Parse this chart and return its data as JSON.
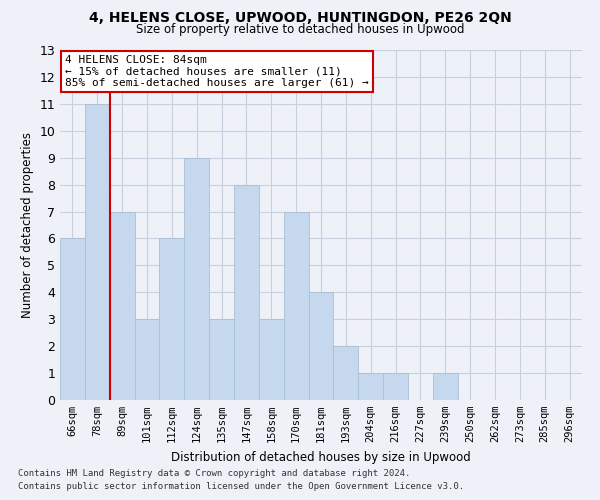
{
  "title1": "4, HELENS CLOSE, UPWOOD, HUNTINGDON, PE26 2QN",
  "title2": "Size of property relative to detached houses in Upwood",
  "xlabel": "Distribution of detached houses by size in Upwood",
  "ylabel": "Number of detached properties",
  "categories": [
    "66sqm",
    "78sqm",
    "89sqm",
    "101sqm",
    "112sqm",
    "124sqm",
    "135sqm",
    "147sqm",
    "158sqm",
    "170sqm",
    "181sqm",
    "193sqm",
    "204sqm",
    "216sqm",
    "227sqm",
    "239sqm",
    "250sqm",
    "262sqm",
    "273sqm",
    "285sqm",
    "296sqm"
  ],
  "values": [
    6,
    11,
    7,
    3,
    6,
    9,
    3,
    8,
    3,
    7,
    4,
    2,
    1,
    1,
    0,
    1,
    0,
    0,
    0,
    0,
    0
  ],
  "bar_color": "#c5d8ed",
  "bar_edge_color": "#a8bfd4",
  "grid_color": "#c8d0df",
  "background_color": "#eef2f8",
  "vline_x_idx": 1.5,
  "vline_color": "#cc0000",
  "annotation_text": "4 HELENS CLOSE: 84sqm\n← 15% of detached houses are smaller (11)\n85% of semi-detached houses are larger (61) →",
  "annotation_box_facecolor": "#ffffff",
  "annotation_box_edgecolor": "#cc0000",
  "ylim": [
    0,
    13
  ],
  "yticks": [
    0,
    1,
    2,
    3,
    4,
    5,
    6,
    7,
    8,
    9,
    10,
    11,
    12,
    13
  ],
  "footer1": "Contains HM Land Registry data © Crown copyright and database right 2024.",
  "footer2": "Contains public sector information licensed under the Open Government Licence v3.0."
}
